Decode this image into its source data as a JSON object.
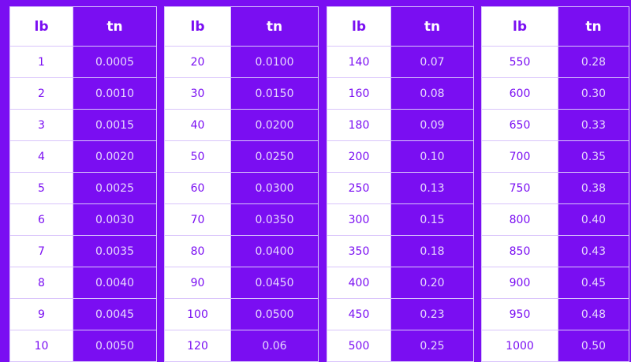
{
  "headers": {
    "lb": "lb",
    "tn": "tn"
  },
  "tables": [
    {
      "rows": [
        [
          "1",
          "0.0005"
        ],
        [
          "2",
          "0.0010"
        ],
        [
          "3",
          "0.0015"
        ],
        [
          "4",
          "0.0020"
        ],
        [
          "5",
          "0.0025"
        ],
        [
          "6",
          "0.0030"
        ],
        [
          "7",
          "0.0035"
        ],
        [
          "8",
          "0.0040"
        ],
        [
          "9",
          "0.0045"
        ],
        [
          "10",
          "0.0050"
        ]
      ]
    },
    {
      "rows": [
        [
          "20",
          "0.0100"
        ],
        [
          "30",
          "0.0150"
        ],
        [
          "40",
          "0.0200"
        ],
        [
          "50",
          "0.0250"
        ],
        [
          "60",
          "0.0300"
        ],
        [
          "70",
          "0.0350"
        ],
        [
          "80",
          "0.0400"
        ],
        [
          "90",
          "0.0450"
        ],
        [
          "100",
          "0.0500"
        ],
        [
          "120",
          "0.06"
        ]
      ]
    },
    {
      "rows": [
        [
          "140",
          "0.07"
        ],
        [
          "160",
          "0.08"
        ],
        [
          "180",
          "0.09"
        ],
        [
          "200",
          "0.10"
        ],
        [
          "250",
          "0.13"
        ],
        [
          "300",
          "0.15"
        ],
        [
          "350",
          "0.18"
        ],
        [
          "400",
          "0.20"
        ],
        [
          "450",
          "0.23"
        ],
        [
          "500",
          "0.25"
        ]
      ]
    },
    {
      "rows": [
        [
          "550",
          "0.28"
        ],
        [
          "600",
          "0.30"
        ],
        [
          "650",
          "0.33"
        ],
        [
          "700",
          "0.35"
        ],
        [
          "750",
          "0.38"
        ],
        [
          "800",
          "0.40"
        ],
        [
          "850",
          "0.43"
        ],
        [
          "900",
          "0.45"
        ],
        [
          "950",
          "0.48"
        ],
        [
          "1000",
          "0.50"
        ]
      ]
    }
  ],
  "colors": {
    "background": "#7a0ef2",
    "border": "#d9c4fb",
    "cell_light": "#ffffff"
  }
}
